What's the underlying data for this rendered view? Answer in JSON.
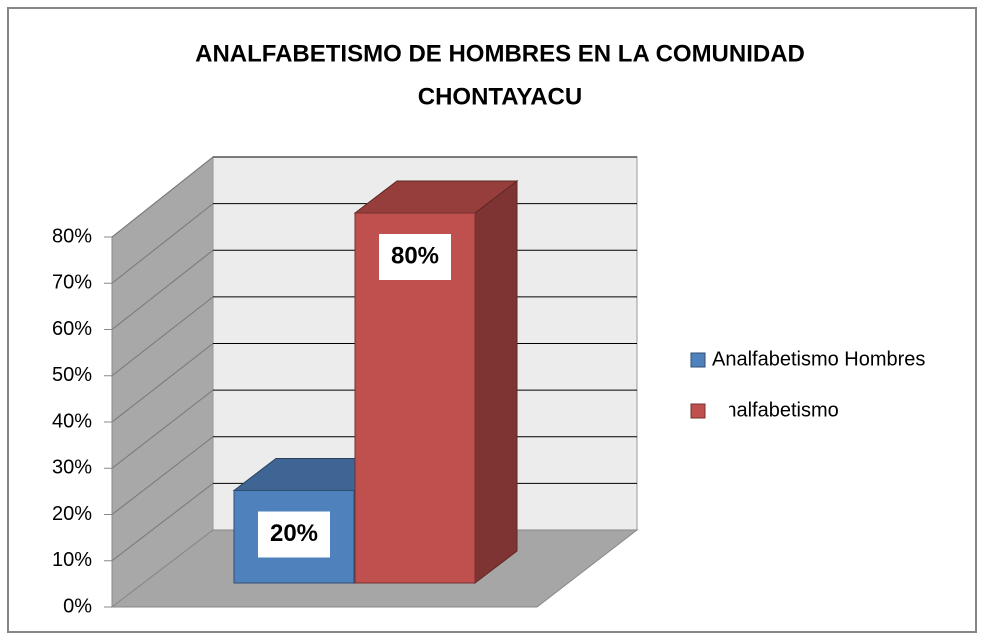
{
  "chart_data": {
    "type": "bar3d",
    "title": "ANALFABETISMO DE HOMBRES EN LA COMUNIDAD",
    "subtitle": "CHONTAYACU",
    "series": [
      {
        "name": "Analfabetismo Hombres",
        "color": "#4f81bd",
        "values": [
          20
        ],
        "value_labels": [
          "20%"
        ]
      },
      {
        "name": "Analfabetismo",
        "color": "#c0504d",
        "values": [
          80
        ],
        "value_labels": [
          "80%"
        ]
      }
    ],
    "ylim": [
      0,
      80
    ],
    "yticks": [
      {
        "value": 0,
        "label": "0%"
      },
      {
        "value": 10,
        "label": "10%"
      },
      {
        "value": 20,
        "label": "20%"
      },
      {
        "value": 30,
        "label": "30%"
      },
      {
        "value": 40,
        "label": "40%"
      },
      {
        "value": 50,
        "label": "50%"
      },
      {
        "value": 60,
        "label": "60%"
      },
      {
        "value": 70,
        "label": "70%"
      },
      {
        "value": 80,
        "label": "80%"
      }
    ],
    "grid": true,
    "legend": "right"
  }
}
